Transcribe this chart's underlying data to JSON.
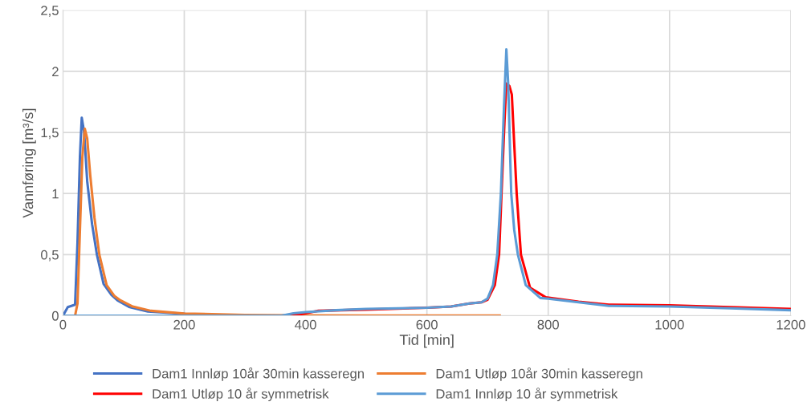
{
  "chart_data": {
    "type": "line",
    "xlabel": "Tid [min]",
    "ylabel": "Vannføring [m³/s]",
    "xlim": [
      0,
      1200
    ],
    "xticks": [
      0,
      200,
      400,
      600,
      800,
      1000,
      1200
    ],
    "ylim": [
      0,
      2.5
    ],
    "yticks": [
      0,
      {
        "value": 0.5,
        "label": "0,5"
      },
      1,
      {
        "value": 1.5,
        "label": "1,5"
      },
      2,
      {
        "value": 2.5,
        "label": "2,5"
      }
    ],
    "grid": true,
    "legend": "bottom",
    "marker": "none",
    "line_style": "solid",
    "series": [
      {
        "name": "Dam1 Innløp 10år 30min kasseregn",
        "color": "#4472c4",
        "x": [
          0,
          8,
          20,
          24,
          28,
          31,
          35,
          40,
          48,
          56,
          67,
          80,
          90,
          110,
          140,
          200
        ],
        "values": [
          0,
          0.07,
          0.09,
          0.6,
          1.3,
          1.62,
          1.5,
          1.1,
          0.75,
          0.5,
          0.26,
          0.17,
          0.125,
          0.07,
          0.035,
          0.015
        ]
      },
      {
        "name": "Dam1 Utløp 10år 30min kasseregn",
        "color": "#ed7d31",
        "x": [
          0,
          20,
          24,
          28,
          32,
          36,
          40,
          45,
          52,
          60,
          72,
          85,
          95,
          115,
          145,
          200,
          300,
          400,
          500,
          600,
          720
        ],
        "values": [
          0,
          0,
          0.1,
          0.7,
          1.3,
          1.53,
          1.45,
          1.15,
          0.8,
          0.5,
          0.25,
          0.16,
          0.125,
          0.075,
          0.04,
          0.018,
          0.007,
          0.003,
          0.002,
          0.001,
          0.001
        ]
      },
      {
        "name": "Dam1 Utløp 10 år symmetrisk",
        "color": "#ff0000",
        "x": [
          0,
          370,
          390,
          420,
          500,
          600,
          640,
          670,
          690,
          700,
          712,
          719,
          723,
          728,
          731,
          736,
          740,
          744,
          748,
          755,
          770,
          796,
          850,
          900,
          1000,
          1100,
          1200
        ],
        "values": [
          0,
          0,
          0.01,
          0.04,
          0.05,
          0.065,
          0.075,
          0.1,
          0.11,
          0.13,
          0.25,
          0.5,
          1.0,
          1.6,
          1.9,
          1.88,
          1.81,
          1.4,
          1.0,
          0.5,
          0.23,
          0.15,
          0.115,
          0.09,
          0.085,
          0.07,
          0.055
        ]
      },
      {
        "name": "Dam1 Innløp 10 år symmetrisk",
        "color": "#5b9bd5",
        "x": [
          0,
          360,
          380,
          400,
          450,
          500,
          600,
          640,
          670,
          690,
          700,
          709,
          716,
          722,
          727,
          731,
          734,
          739,
          744,
          750,
          763,
          787,
          800,
          850,
          900,
          1000,
          1100,
          1200
        ],
        "values": [
          0,
          0,
          0.02,
          0.03,
          0.045,
          0.055,
          0.065,
          0.075,
          0.1,
          0.11,
          0.14,
          0.25,
          0.5,
          1.0,
          1.7,
          2.18,
          1.9,
          1.0,
          0.7,
          0.5,
          0.25,
          0.145,
          0.14,
          0.11,
          0.08,
          0.075,
          0.06,
          0.045
        ]
      }
    ]
  }
}
